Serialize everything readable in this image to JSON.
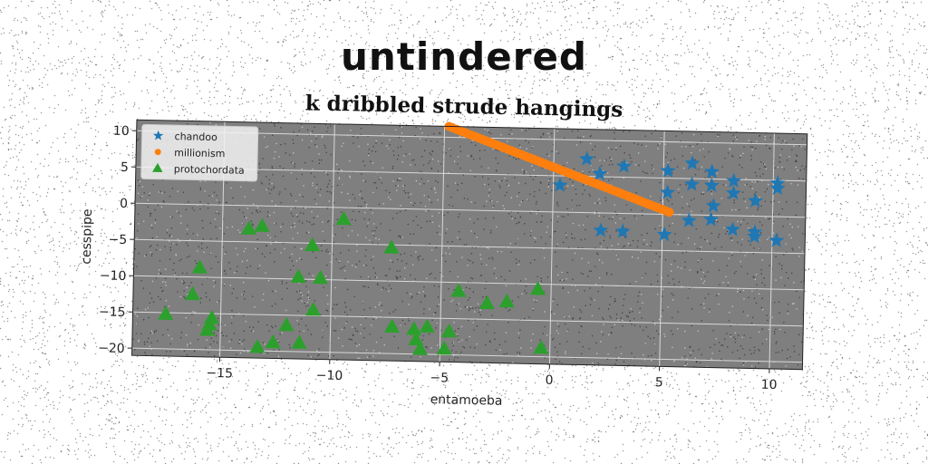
{
  "figure_title": "untindered",
  "chart_data": {
    "type": "scatter",
    "title": "k dribbled strude hangings",
    "xlabel": "entamoeba",
    "ylabel": "cesspipe",
    "xlim": [
      -19,
      11.5
    ],
    "ylim": [
      -21,
      11.5
    ],
    "xticks": [
      -15,
      -10,
      -5,
      0,
      5,
      10
    ],
    "xtick_labels": [
      "−15",
      "−10",
      "−5",
      "0",
      "5",
      "10"
    ],
    "yticks": [
      -20,
      -15,
      -10,
      -5,
      0,
      5,
      10
    ],
    "ytick_labels": [
      "−20",
      "−15",
      "−10",
      "−5",
      "0",
      "5",
      "10"
    ],
    "grid": true,
    "legend_position": "top-left",
    "series": [
      {
        "name": "chandoo",
        "marker": "star",
        "color": "#1f77b4",
        "points": [
          {
            "x": 0.3,
            "y": 3.7
          },
          {
            "x": 1.5,
            "y": 7.4
          },
          {
            "x": 2.1,
            "y": 5.4
          },
          {
            "x": 3.2,
            "y": 6.5
          },
          {
            "x": 2.2,
            "y": -2.4
          },
          {
            "x": 3.2,
            "y": -2.5
          },
          {
            "x": 5.2,
            "y": 6.0
          },
          {
            "x": 5.2,
            "y": 3.0
          },
          {
            "x": 5.1,
            "y": -2.8
          },
          {
            "x": 6.3,
            "y": 7.1
          },
          {
            "x": 6.3,
            "y": 4.2
          },
          {
            "x": 6.2,
            "y": -0.8
          },
          {
            "x": 7.2,
            "y": 6.0
          },
          {
            "x": 7.2,
            "y": 4.1
          },
          {
            "x": 7.3,
            "y": 1.3
          },
          {
            "x": 7.2,
            "y": -0.6
          },
          {
            "x": 8.2,
            "y": 4.8
          },
          {
            "x": 8.2,
            "y": 3.1
          },
          {
            "x": 8.2,
            "y": -1.9
          },
          {
            "x": 9.2,
            "y": 2.1
          },
          {
            "x": 9.2,
            "y": -2.2
          },
          {
            "x": 9.2,
            "y": -2.8
          },
          {
            "x": 10.2,
            "y": 4.6
          },
          {
            "x": 10.2,
            "y": 3.9
          },
          {
            "x": 10.2,
            "y": -3.3
          }
        ]
      },
      {
        "name": "millionism",
        "marker": "circle",
        "color": "#ff7f0e",
        "line": {
          "x_start": -4.8,
          "y_start": 11.5,
          "x_end": 5.3,
          "y_end": 0.3
        }
      },
      {
        "name": "protochordata",
        "marker": "triangle",
        "color": "#2ca02c",
        "points": [
          {
            "x": -17.5,
            "y": -15.2
          },
          {
            "x": -16.3,
            "y": -12.4
          },
          {
            "x": -16.0,
            "y": -8.7
          },
          {
            "x": -15.4,
            "y": -15.6
          },
          {
            "x": -15.5,
            "y": -16.5
          },
          {
            "x": -15.6,
            "y": -17.3
          },
          {
            "x": -13.8,
            "y": -3.2
          },
          {
            "x": -13.2,
            "y": -2.8
          },
          {
            "x": -13.3,
            "y": -19.5
          },
          {
            "x": -12.6,
            "y": -18.8
          },
          {
            "x": -12.0,
            "y": -16.4
          },
          {
            "x": -11.4,
            "y": -18.8
          },
          {
            "x": -11.5,
            "y": -9.7
          },
          {
            "x": -10.9,
            "y": -5.3
          },
          {
            "x": -10.8,
            "y": -14.2
          },
          {
            "x": -10.5,
            "y": -9.8
          },
          {
            "x": -9.5,
            "y": -1.6
          },
          {
            "x": -7.3,
            "y": -5.4
          },
          {
            "x": -7.2,
            "y": -16.3
          },
          {
            "x": -6.2,
            "y": -16.6
          },
          {
            "x": -6.1,
            "y": -18.0
          },
          {
            "x": -5.9,
            "y": -19.3
          },
          {
            "x": -5.6,
            "y": -16.2
          },
          {
            "x": -4.8,
            "y": -19.2
          },
          {
            "x": -4.6,
            "y": -16.8
          },
          {
            "x": -4.2,
            "y": -11.2
          },
          {
            "x": -2.9,
            "y": -12.8
          },
          {
            "x": -2.0,
            "y": -12.5
          },
          {
            "x": -0.6,
            "y": -10.7
          },
          {
            "x": -0.4,
            "y": -18.8
          }
        ]
      }
    ]
  }
}
